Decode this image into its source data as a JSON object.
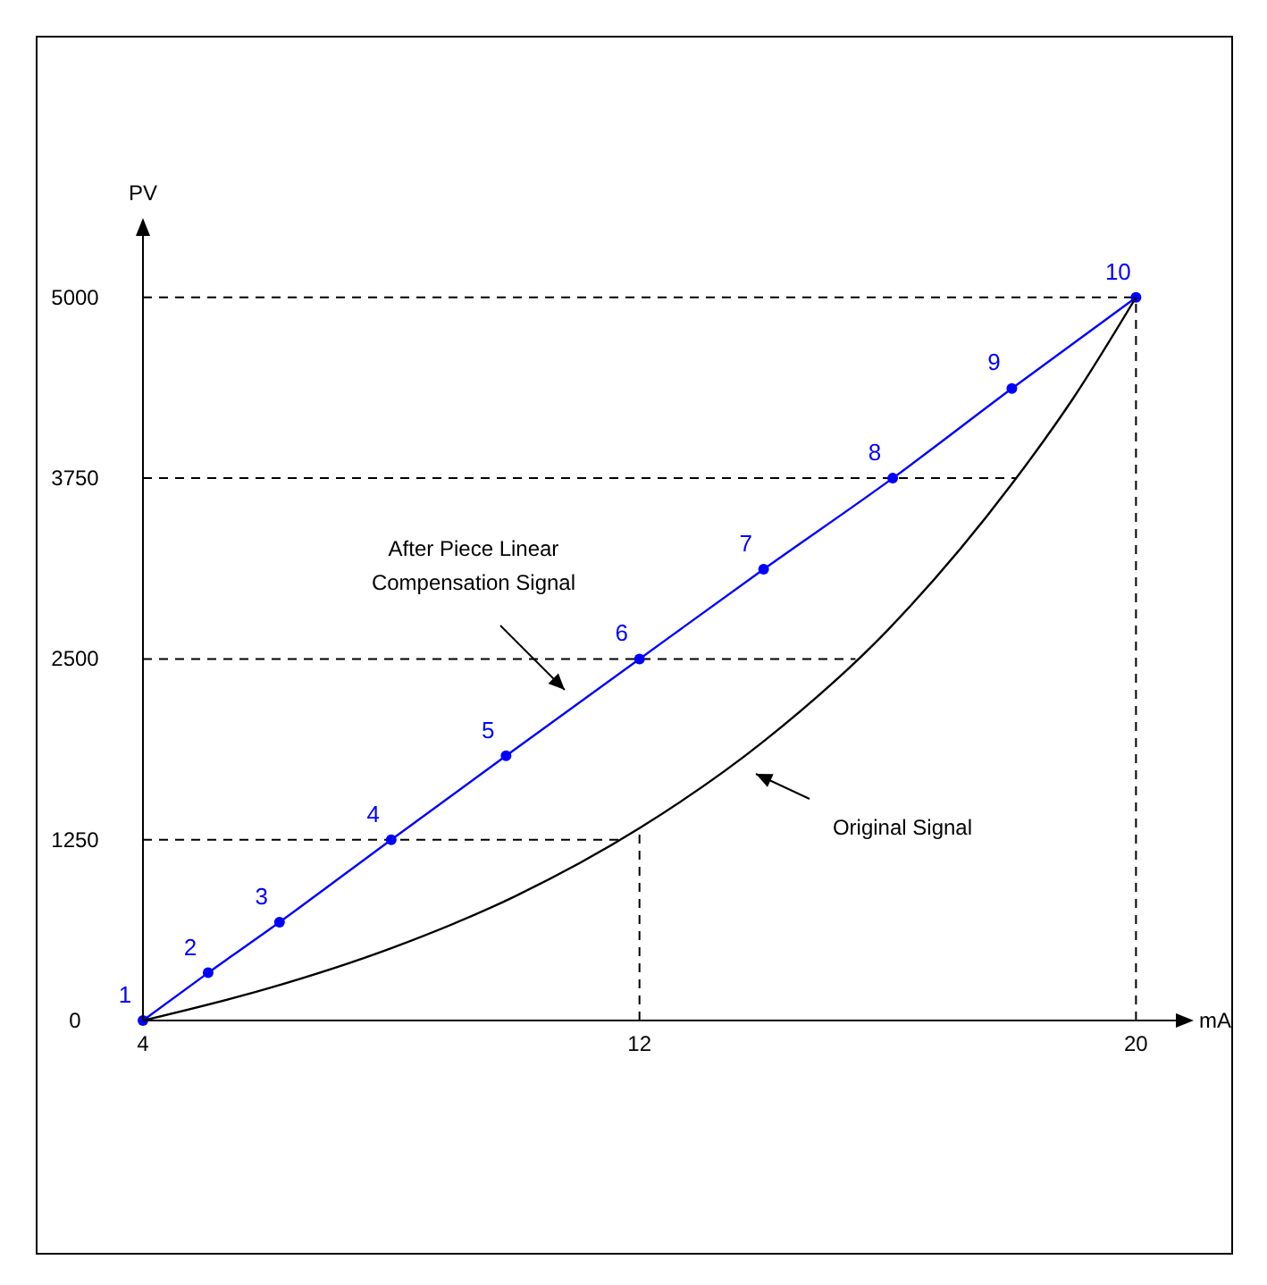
{
  "chart_data": {
    "type": "line",
    "xlabel": "mA",
    "ylabel": "PV",
    "xlim": [
      4,
      20.7
    ],
    "ylim": [
      0,
      5450
    ],
    "xticks": [
      4,
      12,
      20
    ],
    "yticks": [
      0,
      1250,
      2500,
      3750,
      5000
    ],
    "grid": false,
    "series": [
      {
        "color": "#0000ff",
        "marker": "circle",
        "x": [
          4,
          5.05,
          6.2,
          8,
          9.85,
          12,
          14,
          16.08,
          18,
          20
        ],
        "values": [
          0,
          330,
          680,
          1250,
          1830,
          2500,
          3120,
          3750,
          4370,
          5000
        ]
      },
      {
        "color": "#000000",
        "marker": "none",
        "x": [
          4,
          6,
          8,
          10,
          12,
          14,
          16,
          18,
          19,
          20
        ],
        "values": [
          0,
          220,
          500,
          860,
          1330,
          1930,
          2700,
          3710,
          4310,
          5000
        ]
      }
    ],
    "ref_lines": [
      {
        "axis": "y",
        "value": 1250,
        "color": "#000000",
        "line_style": "dashed"
      },
      {
        "axis": "y",
        "value": 2500,
        "color": "#000000",
        "line_style": "dashed"
      },
      {
        "axis": "y",
        "value": 3750,
        "color": "#000000",
        "line_style": "dashed"
      },
      {
        "axis": "y",
        "value": 5000,
        "color": "#000000",
        "line_style": "dashed"
      },
      {
        "axis": "x",
        "value": 12,
        "color": "#000000",
        "line_style": "dashed"
      },
      {
        "axis": "x",
        "value": 20,
        "color": "#000000",
        "line_style": "dashed"
      }
    ],
    "annotations": [
      "After Piece Linear\nCompensation Signal",
      "Original Signal",
      {
        "text": "1",
        "x": 4,
        "y": 0
      },
      {
        "text": "2",
        "x": 5.05,
        "y": 326
      },
      {
        "text": "3",
        "x": 6.2,
        "y": 682
      },
      {
        "text": "4",
        "x": 8,
        "y": 1250
      },
      {
        "text": "5",
        "x": 9.85,
        "y": 1828
      },
      {
        "text": "6",
        "x": 12,
        "y": 2500
      },
      {
        "text": "7",
        "x": 14,
        "y": 3123
      },
      {
        "text": "8",
        "x": 16.08,
        "y": 3750
      },
      {
        "text": "9",
        "x": 18,
        "y": 4373
      },
      {
        "text": "10",
        "x": 20,
        "y": 5000
      }
    ]
  }
}
